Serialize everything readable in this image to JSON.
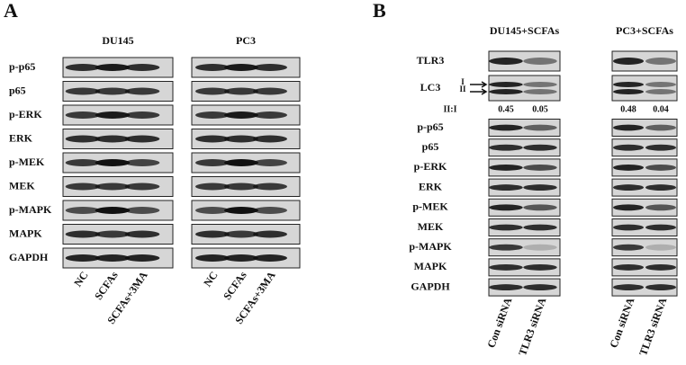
{
  "panel_a": {
    "label": "A",
    "cell_lines": [
      "DU145",
      "PC3"
    ],
    "proteins": [
      "p-p65",
      "p65",
      "p-ERK",
      "ERK",
      "p-MEK",
      "MEK",
      "p-MAPK",
      "MAPK",
      "GAPDH"
    ],
    "lanes": [
      "NC",
      "SCFAs",
      "SCFAs+3MA"
    ]
  },
  "panel_b": {
    "label": "B",
    "cell_lines": [
      "DU145+SCFAs",
      "PC3+SCFAs"
    ],
    "top_proteins": [
      "TLR3",
      "LC3"
    ],
    "lc3_bands": [
      "I",
      "II"
    ],
    "ratio_label": "II:I",
    "ratios": [
      [
        0.45,
        0.05
      ],
      [
        0.48,
        0.04
      ]
    ],
    "proteins": [
      "p-p65",
      "p65",
      "p-ERK",
      "ERK",
      "p-MEK",
      "MEK",
      "p-MAPK",
      "MAPK",
      "GAPDH"
    ],
    "lanes": [
      "Con siRNA",
      "TLR3 siRNA"
    ]
  }
}
